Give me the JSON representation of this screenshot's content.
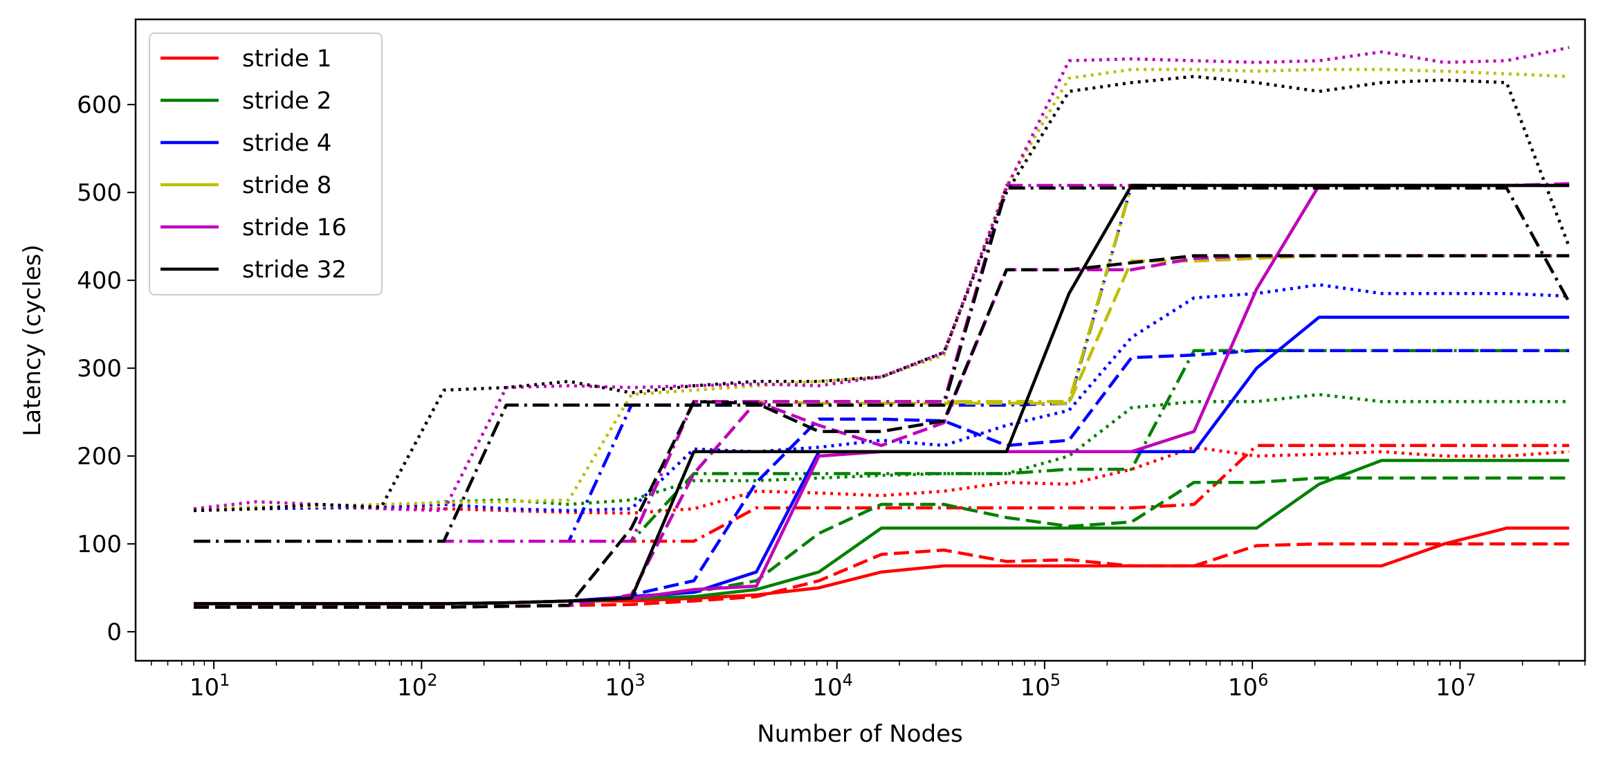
{
  "chart_data": {
    "type": "line",
    "xscale": "log",
    "xlabel": "Number of Nodes",
    "ylabel": "Latency (cycles)",
    "xlim": [
      4.2,
      40000000
    ],
    "ylim": [
      -33,
      697
    ],
    "grid": false,
    "legend_position": "top-left",
    "x_tick_labels": [
      {
        "value": 10,
        "base": "10",
        "exp": "1"
      },
      {
        "value": 100,
        "base": "10",
        "exp": "2"
      },
      {
        "value": 1000,
        "base": "10",
        "exp": "3"
      },
      {
        "value": 10000,
        "base": "10",
        "exp": "4"
      },
      {
        "value": 100000,
        "base": "10",
        "exp": "5"
      },
      {
        "value": 1000000,
        "base": "10",
        "exp": "6"
      },
      {
        "value": 10000000,
        "base": "10",
        "exp": "7"
      }
    ],
    "y_tick_labels": [
      {
        "value": 0,
        "label": "0"
      },
      {
        "value": 100,
        "label": "100"
      },
      {
        "value": 200,
        "label": "200"
      },
      {
        "value": 300,
        "label": "300"
      },
      {
        "value": 400,
        "label": "400"
      },
      {
        "value": 500,
        "label": "500"
      },
      {
        "value": 600,
        "label": "600"
      }
    ],
    "legend": [
      {
        "label": "stride 1",
        "color": "#ff0000"
      },
      {
        "label": "stride 2",
        "color": "#008000"
      },
      {
        "label": "stride 4",
        "color": "#0000ff"
      },
      {
        "label": "stride 8",
        "color": "#bfbf00"
      },
      {
        "label": "stride 16",
        "color": "#bf00bf"
      },
      {
        "label": "stride 32",
        "color": "#000000"
      }
    ],
    "line_styles": [
      "solid",
      "dashed",
      "dashdot",
      "dotted"
    ],
    "x_log2": [
      3,
      4,
      5,
      6,
      7,
      8,
      9,
      10,
      11,
      12,
      13,
      14,
      15,
      16,
      17,
      18,
      19,
      20,
      21,
      22,
      23,
      24,
      25
    ],
    "series": [
      {
        "name": "stride 1 solid",
        "stride": 1,
        "style": "solid",
        "color": "#ff0000",
        "values": [
          32,
          32,
          32,
          32,
          32,
          33,
          35,
          35,
          38,
          42,
          50,
          68,
          75,
          75,
          75,
          75,
          75,
          75,
          75,
          75,
          100,
          118,
          118
        ]
      },
      {
        "name": "stride 1 dashed",
        "stride": 1,
        "style": "dashed",
        "color": "#ff0000",
        "values": [
          28,
          28,
          28,
          28,
          28,
          29,
          30,
          31,
          35,
          40,
          58,
          88,
          93,
          80,
          82,
          75,
          75,
          98,
          100,
          100,
          100,
          100,
          100
        ]
      },
      {
        "name": "stride 1 dashdot",
        "stride": 1,
        "style": "dashdot",
        "color": "#ff0000",
        "values": [
          103,
          103,
          103,
          103,
          103,
          103,
          103,
          103,
          103,
          141,
          141,
          141,
          141,
          141,
          141,
          141,
          145,
          212,
          212,
          212,
          212,
          212,
          212
        ]
      },
      {
        "name": "stride 1 dotted",
        "stride": 1,
        "style": "dotted",
        "color": "#ff0000",
        "values": [
          138,
          140,
          141,
          141,
          140,
          138,
          136,
          135,
          140,
          160,
          158,
          155,
          160,
          170,
          168,
          185,
          210,
          200,
          202,
          205,
          200,
          200,
          205
        ]
      },
      {
        "name": "stride 2 solid",
        "stride": 2,
        "style": "solid",
        "color": "#008000",
        "values": [
          32,
          32,
          32,
          32,
          32,
          33,
          35,
          38,
          40,
          48,
          68,
          118,
          118,
          118,
          118,
          118,
          118,
          118,
          168,
          195,
          195,
          195,
          195
        ]
      },
      {
        "name": "stride 2 dashed",
        "stride": 2,
        "style": "dashed",
        "color": "#008000",
        "values": [
          28,
          28,
          28,
          28,
          28,
          29,
          30,
          40,
          45,
          58,
          112,
          145,
          145,
          130,
          120,
          125,
          170,
          170,
          175,
          175,
          175,
          175,
          175
        ]
      },
      {
        "name": "stride 2 dashdot",
        "stride": 2,
        "style": "dashdot",
        "color": "#008000",
        "values": [
          103,
          103,
          103,
          103,
          103,
          103,
          103,
          103,
          180,
          180,
          180,
          180,
          180,
          180,
          185,
          185,
          320,
          320,
          320,
          320,
          320,
          320,
          320
        ]
      },
      {
        "name": "stride 2 dotted",
        "stride": 2,
        "style": "dotted",
        "color": "#008000",
        "values": [
          138,
          140,
          141,
          141,
          148,
          150,
          145,
          150,
          172,
          172,
          175,
          178,
          180,
          180,
          200,
          255,
          262,
          262,
          270,
          262,
          262,
          262,
          262
        ]
      },
      {
        "name": "stride 4 solid",
        "stride": 4,
        "style": "solid",
        "color": "#0000ff",
        "values": [
          32,
          32,
          32,
          32,
          32,
          33,
          35,
          40,
          45,
          68,
          205,
          205,
          205,
          205,
          205,
          205,
          205,
          300,
          358,
          358,
          358,
          358,
          358
        ]
      },
      {
        "name": "stride 4 dashed",
        "stride": 4,
        "style": "dashed",
        "color": "#0000ff",
        "values": [
          28,
          28,
          28,
          28,
          28,
          29,
          30,
          42,
          58,
          170,
          242,
          242,
          240,
          212,
          218,
          312,
          315,
          320,
          320,
          320,
          320,
          320,
          320
        ]
      },
      {
        "name": "stride 4 dashdot",
        "stride": 4,
        "style": "dashdot",
        "color": "#0000ff",
        "values": [
          103,
          103,
          103,
          103,
          103,
          103,
          103,
          258,
          258,
          258,
          258,
          258,
          258,
          258,
          260,
          508,
          508,
          508,
          508,
          508,
          508,
          508,
          508
        ]
      },
      {
        "name": "stride 4 dotted",
        "stride": 4,
        "style": "dotted",
        "color": "#0000ff",
        "values": [
          138,
          140,
          141,
          142,
          145,
          140,
          138,
          140,
          208,
          205,
          210,
          218,
          212,
          235,
          252,
          335,
          380,
          385,
          395,
          385,
          385,
          385,
          382
        ]
      },
      {
        "name": "stride 8 solid",
        "stride": 8,
        "style": "solid",
        "color": "#bfbf00",
        "values": [
          32,
          32,
          32,
          32,
          32,
          33,
          35,
          38,
          48,
          52,
          200,
          205,
          205,
          205,
          205,
          205,
          228,
          390,
          508,
          508,
          508,
          508,
          508
        ]
      },
      {
        "name": "stride 8 dashed",
        "stride": 8,
        "style": "dashed",
        "color": "#bfbf00",
        "values": [
          28,
          28,
          28,
          28,
          28,
          29,
          30,
          42,
          180,
          262,
          260,
          260,
          260,
          260,
          260,
          422,
          422,
          425,
          428,
          428,
          428,
          428,
          428
        ]
      },
      {
        "name": "stride 8 dashdot",
        "stride": 8,
        "style": "dashdot",
        "color": "#bfbf00",
        "values": [
          103,
          103,
          103,
          103,
          103,
          103,
          103,
          103,
          262,
          262,
          262,
          262,
          262,
          262,
          262,
          508,
          508,
          508,
          508,
          508,
          508,
          508,
          508
        ]
      },
      {
        "name": "stride 8 dotted",
        "stride": 8,
        "style": "dotted",
        "color": "#bfbf00",
        "values": [
          140,
          142,
          143,
          145,
          147,
          148,
          150,
          270,
          275,
          280,
          285,
          290,
          315,
          508,
          630,
          640,
          640,
          638,
          640,
          640,
          638,
          635,
          632
        ]
      },
      {
        "name": "stride 16 solid",
        "stride": 16,
        "style": "solid",
        "color": "#bf00bf",
        "values": [
          32,
          32,
          32,
          32,
          32,
          33,
          35,
          38,
          48,
          52,
          200,
          205,
          205,
          205,
          205,
          205,
          228,
          390,
          508,
          508,
          508,
          508,
          508
        ]
      },
      {
        "name": "stride 16 dashed",
        "stride": 16,
        "style": "dashed",
        "color": "#bf00bf",
        "values": [
          28,
          28,
          28,
          28,
          28,
          29,
          30,
          42,
          180,
          262,
          235,
          212,
          238,
          412,
          412,
          412,
          425,
          428,
          428,
          428,
          428,
          428,
          428
        ]
      },
      {
        "name": "stride 16 dashdot",
        "stride": 16,
        "style": "dashdot",
        "color": "#bf00bf",
        "values": [
          103,
          103,
          103,
          103,
          103,
          103,
          103,
          103,
          262,
          262,
          262,
          262,
          262,
          508,
          508,
          508,
          508,
          508,
          508,
          508,
          508,
          508,
          510
        ]
      },
      {
        "name": "stride 16 dotted",
        "stride": 16,
        "style": "dotted",
        "color": "#bf00bf",
        "values": [
          140,
          148,
          145,
          140,
          138,
          278,
          280,
          278,
          280,
          282,
          280,
          290,
          318,
          505,
          650,
          652,
          650,
          648,
          650,
          660,
          648,
          650,
          665
        ]
      },
      {
        "name": "stride 32 solid",
        "stride": 32,
        "style": "solid",
        "color": "#000000",
        "values": [
          32,
          32,
          32,
          32,
          32,
          33,
          35,
          38,
          205,
          205,
          205,
          205,
          205,
          205,
          385,
          508,
          508,
          508,
          508,
          508,
          508,
          508,
          508
        ]
      },
      {
        "name": "stride 32 dashed",
        "stride": 32,
        "style": "dashed",
        "color": "#000000",
        "values": [
          28,
          28,
          28,
          28,
          28,
          29,
          30,
          118,
          262,
          260,
          228,
          228,
          240,
          412,
          412,
          420,
          428,
          428,
          428,
          428,
          428,
          428,
          428
        ]
      },
      {
        "name": "stride 32 dashdot",
        "stride": 32,
        "style": "dashdot",
        "color": "#000000",
        "values": [
          103,
          103,
          103,
          103,
          103,
          258,
          258,
          258,
          258,
          258,
          258,
          258,
          258,
          505,
          505,
          505,
          505,
          505,
          505,
          505,
          505,
          505,
          375
        ]
      },
      {
        "name": "stride 32 dotted",
        "stride": 32,
        "style": "dotted",
        "color": "#000000",
        "values": [
          138,
          140,
          145,
          142,
          275,
          278,
          285,
          272,
          280,
          285,
          285,
          290,
          318,
          500,
          615,
          625,
          632,
          625,
          615,
          625,
          628,
          625,
          438
        ]
      }
    ]
  }
}
